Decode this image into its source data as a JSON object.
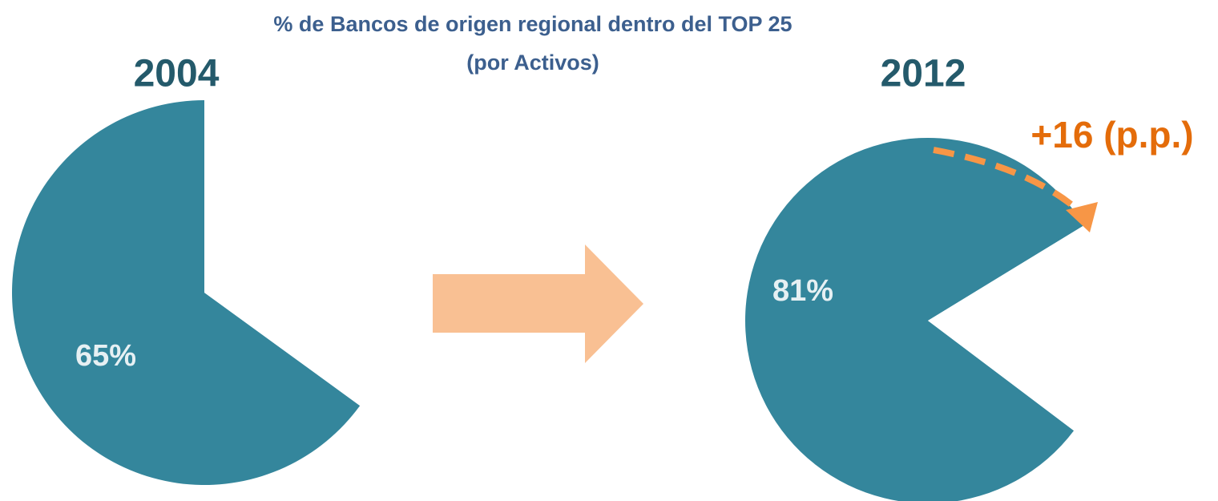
{
  "header": {
    "title": "% de Bancos de origen regional  dentro del TOP 25",
    "subtitle": "(por  Activos)"
  },
  "chart_data": [
    {
      "type": "pie",
      "title": "2004",
      "values": [
        65,
        35
      ],
      "value_labels": [
        "65%",
        null
      ],
      "colors": [
        "#34869c",
        "#ffffff"
      ]
    },
    {
      "type": "pie",
      "title": "2012",
      "values": [
        81,
        19
      ],
      "value_labels": [
        "81%",
        null
      ],
      "colors": [
        "#34869c",
        "#ffffff"
      ],
      "annotation": "+16 (p.p.)"
    }
  ]
}
